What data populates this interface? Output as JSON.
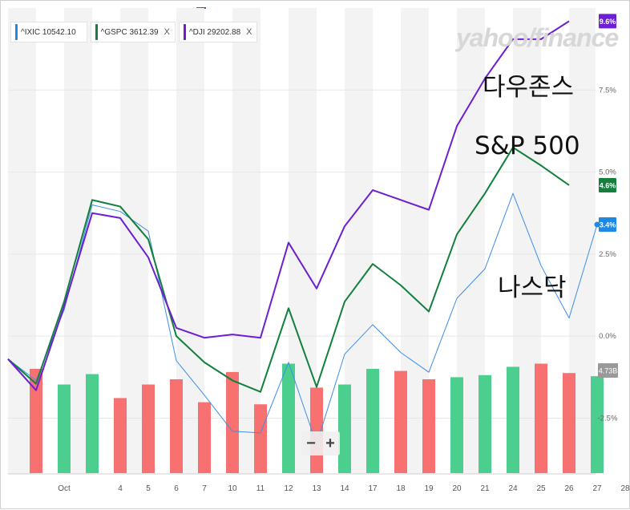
{
  "watermark": "yahoo/finance",
  "legend": [
    {
      "label": "^IXIC 10542.10",
      "color": "#1e88e5",
      "close": ""
    },
    {
      "label": "^GSPC 3612.39",
      "color": "#15803d",
      "close": "X"
    },
    {
      "label": "^DJI 29202.88",
      "color": "#6d1fd1",
      "close": "X"
    }
  ],
  "annotations": {
    "dow": "다우존스",
    "sp": "S&P 500",
    "nasdaq": "나스닥"
  },
  "zoom": {
    "minus": "−",
    "plus": "+"
  },
  "chart_data": {
    "type": "line",
    "x": [
      "",
      "",
      "Oct",
      "",
      "4",
      "5",
      "6",
      "7",
      "10",
      "11",
      "12",
      "13",
      "14",
      "17",
      "18",
      "19",
      "20",
      "21",
      "24",
      "25",
      "26",
      "27",
      "28"
    ],
    "y_ticks": [
      {
        "value": 7.5,
        "label": "7.5%"
      },
      {
        "value": 5.0,
        "label": "5.0%"
      },
      {
        "value": 2.5,
        "label": "2.5%"
      },
      {
        "value": 0.0,
        "label": "0.0%"
      },
      {
        "value": -2.5,
        "label": "-2.5%"
      }
    ],
    "ylim": [
      -4.2,
      10.0
    ],
    "series": [
      {
        "name": "^IXIC",
        "color": "#3b8ee8",
        "width": 1,
        "values": [
          -0.7,
          -1.35,
          0.8,
          4.0,
          3.8,
          3.2,
          -0.75,
          -1.8,
          -2.9,
          -2.95,
          -0.8,
          -3.3,
          -0.55,
          0.35,
          -0.5,
          -1.1,
          1.15,
          2.05,
          4.35,
          2.15,
          0.55,
          3.4,
          null
        ],
        "end_label": "3.4%"
      },
      {
        "name": "^GSPC",
        "color": "#12803d",
        "width": 2,
        "values": [
          -0.7,
          -1.45,
          1.05,
          4.15,
          3.95,
          2.95,
          0.0,
          -0.8,
          -1.35,
          -1.7,
          0.85,
          -1.55,
          1.05,
          2.2,
          1.55,
          0.75,
          3.1,
          4.35,
          5.75,
          5.2,
          4.6,
          null,
          null
        ],
        "end_label": "4.6%"
      },
      {
        "name": "^DJI",
        "color": "#6d1fd1",
        "width": 2,
        "values": [
          -0.7,
          -1.65,
          0.9,
          3.75,
          3.6,
          2.4,
          0.25,
          -0.05,
          0.05,
          -0.05,
          2.85,
          1.45,
          3.35,
          4.45,
          4.15,
          3.85,
          6.4,
          7.85,
          9.05,
          9.05,
          9.6,
          null,
          null
        ],
        "end_label": "9.6%"
      }
    ],
    "volume": {
      "label": "4.73B",
      "values": [
        1.0,
        0.85,
        0.95,
        0.72,
        0.85,
        0.9,
        0.68,
        0.97,
        0.66,
        1.05,
        0.82,
        0.85,
        1.0,
        0.98,
        0.9,
        0.92,
        0.94,
        1.02,
        1.05,
        0.96,
        0.93
      ],
      "colors": [
        "red",
        "green",
        "green",
        "red",
        "red",
        "red",
        "red",
        "red",
        "red",
        "green",
        "red",
        "green",
        "green",
        "red",
        "red",
        "green",
        "green",
        "green",
        "red",
        "red",
        "green"
      ]
    },
    "grid": true
  }
}
